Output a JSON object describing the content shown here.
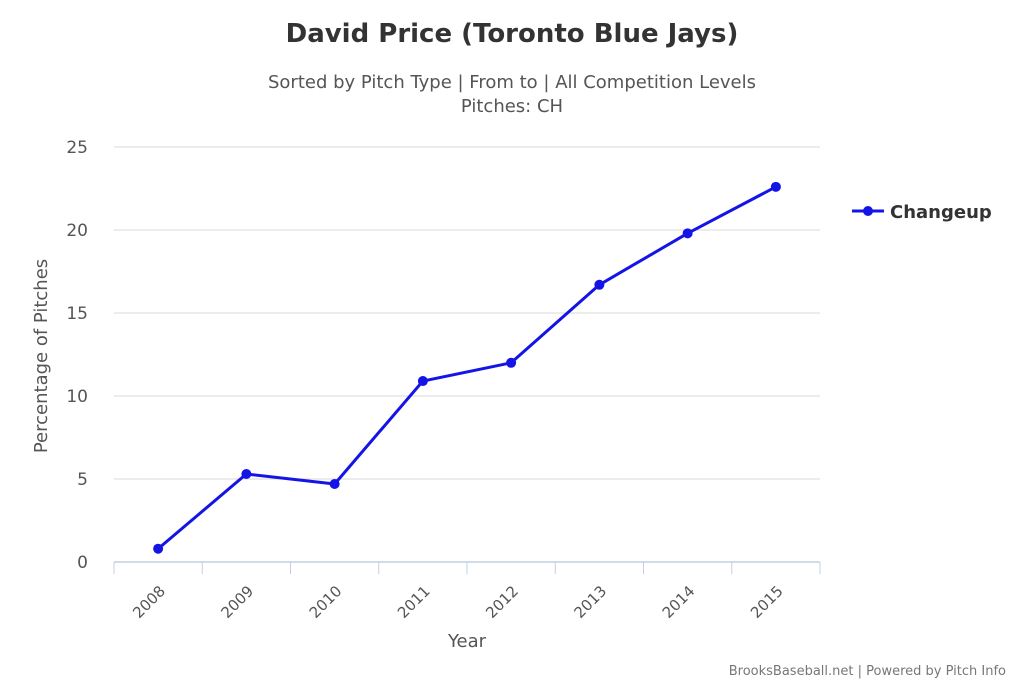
{
  "chart_data": {
    "type": "line",
    "title": "David Price (Toronto Blue Jays)",
    "subtitle_lines": [
      "Sorted by Pitch Type | From to | All Competition Levels",
      "Pitches: CH"
    ],
    "xlabel": "Year",
    "ylabel": "Percentage of Pitches",
    "categories": [
      "2008",
      "2009",
      "2010",
      "2011",
      "2012",
      "2013",
      "2014",
      "2015"
    ],
    "y_ticks": [
      "0",
      "5",
      "10",
      "15",
      "20",
      "25"
    ],
    "ylim": [
      0,
      25
    ],
    "grid": true,
    "legend_position": "right",
    "series": [
      {
        "name": "Changeup",
        "color": "#1414e6",
        "values": [
          0.8,
          5.3,
          4.7,
          10.9,
          12.0,
          16.7,
          19.8,
          22.6
        ]
      }
    ]
  },
  "credits": "BrooksBaseball.net | Powered by Pitch Info"
}
